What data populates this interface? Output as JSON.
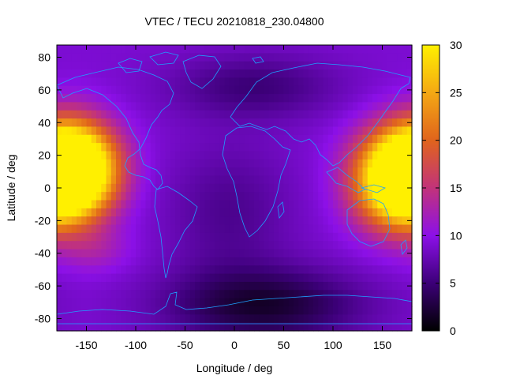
{
  "chart_data": {
    "type": "heatmap",
    "title": "VTEC / TECU 20210818_230.04800",
    "xlabel": "Longitude / deg",
    "ylabel": "Latitude / deg",
    "xlim": [
      -180,
      180
    ],
    "ylim": [
      -87.5,
      87.5
    ],
    "x_ticks": [
      -150,
      -100,
      -50,
      0,
      50,
      100,
      150
    ],
    "y_ticks": [
      -80,
      -60,
      -40,
      -20,
      0,
      20,
      40,
      60,
      80
    ],
    "colorbar": {
      "range": [
        0,
        30
      ],
      "ticks": [
        0,
        5,
        10,
        15,
        20,
        25,
        30
      ],
      "palette": [
        "#000000",
        "#3c0078",
        "#8c10e8",
        "#c2337a",
        "#e0641c",
        "#f4a814",
        "#fff000"
      ]
    },
    "grid_resolution_deg": {
      "lon": 5,
      "lat": 5
    },
    "background_tec": 9,
    "features": [
      {
        "name": "pacific-crest",
        "lon": -162,
        "lat": 12,
        "peak": 29,
        "sigma_lon": 30,
        "sigma_lat": 19
      },
      {
        "name": "asia-crest",
        "lon": 168,
        "lat": 5,
        "peak": 28,
        "sigma_lon": 32,
        "sigma_lat": 20
      },
      {
        "name": "south-pacific-bump",
        "lon": -140,
        "lat": -38,
        "peak": 3,
        "sigma_lon": 25,
        "sigma_lat": 10
      },
      {
        "name": "south-trough",
        "lon": 30,
        "lat": -72,
        "peak": -7,
        "sigma_lon": 70,
        "sigma_lat": 16
      },
      {
        "name": "north-trough",
        "lon": 20,
        "lat": 62,
        "peak": -4,
        "sigma_lon": 60,
        "sigma_lat": 14
      },
      {
        "name": "atlantic-low",
        "lon": -5,
        "lat": -15,
        "peak": -3,
        "sigma_lon": 45,
        "sigma_lat": 30
      }
    ],
    "overlay": "coastlines"
  },
  "coastline_color": "#1ea0ff"
}
